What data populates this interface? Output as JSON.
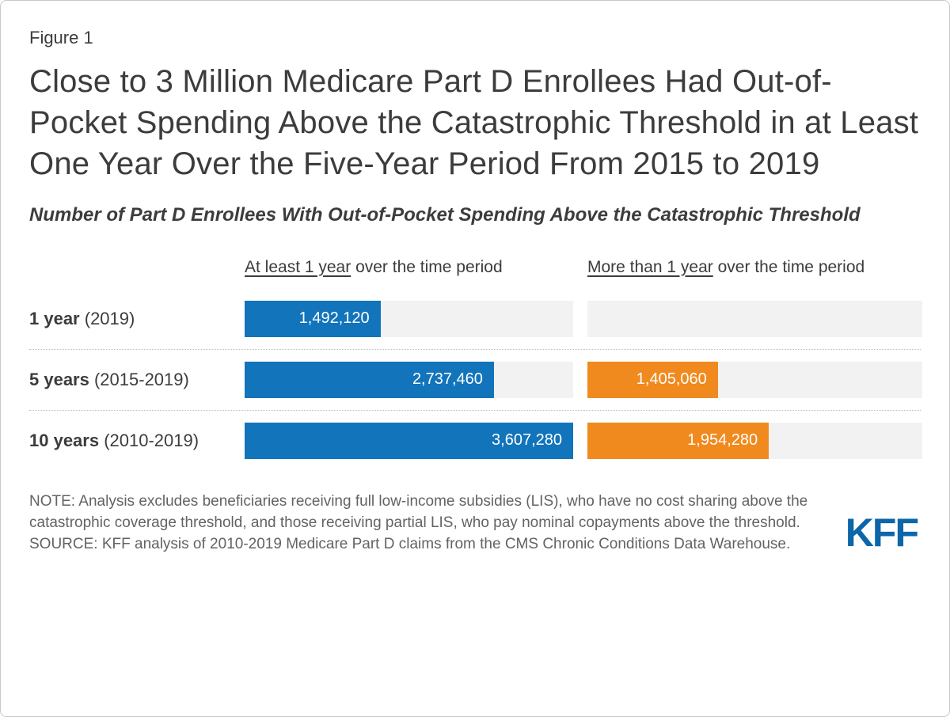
{
  "figure_label": "Figure 1",
  "title": "Close to 3 Million Medicare Part D Enrollees Had Out-of-Pocket Spending Above the Catastrophic Threshold in at Least One Year Over the Five-Year Period From 2015 to 2019",
  "subtitle": "Number of Part D Enrollees With Out-of-Pocket Spending Above the Catastrophic Threshold",
  "chart_data": {
    "type": "bar",
    "orientation": "horizontal",
    "max_value": 3607280,
    "columns": [
      {
        "header_underlined": "At least 1 year",
        "header_rest": " over the time period",
        "color": "#1274bb"
      },
      {
        "header_underlined": "More than 1 year",
        "header_rest": " over the time period",
        "color": "#f18a1e"
      }
    ],
    "rows": [
      {
        "label_bold": "1 year",
        "label_rest": " (2019)",
        "values": [
          1492120,
          null
        ],
        "display": [
          "1,492,120",
          ""
        ]
      },
      {
        "label_bold": "5 years",
        "label_rest": " (2015-2019)",
        "values": [
          2737460,
          1405060
        ],
        "display": [
          "2,737,460",
          "1,405,060"
        ]
      },
      {
        "label_bold": "10 years",
        "label_rest": " (2010-2019)",
        "values": [
          3607280,
          1954280
        ],
        "display": [
          "3,607,280",
          "1,954,280"
        ]
      }
    ]
  },
  "note": "NOTE: Analysis excludes beneficiaries receiving full low-income subsidies (LIS), who have no cost sharing above the catastrophic coverage threshold, and those receiving partial LIS, who pay nominal copayments above the threshold.",
  "source": "SOURCE: KFF analysis of 2010-2019 Medicare Part D claims from the CMS Chronic Conditions Data Warehouse.",
  "logo_text": "KFF",
  "colors": {
    "blue": "#1274bb",
    "orange": "#f18a1e",
    "track": "#f2f2f2",
    "text": "#3c3c3c",
    "note_text": "#636363",
    "kff_blue": "#0c66a9"
  }
}
